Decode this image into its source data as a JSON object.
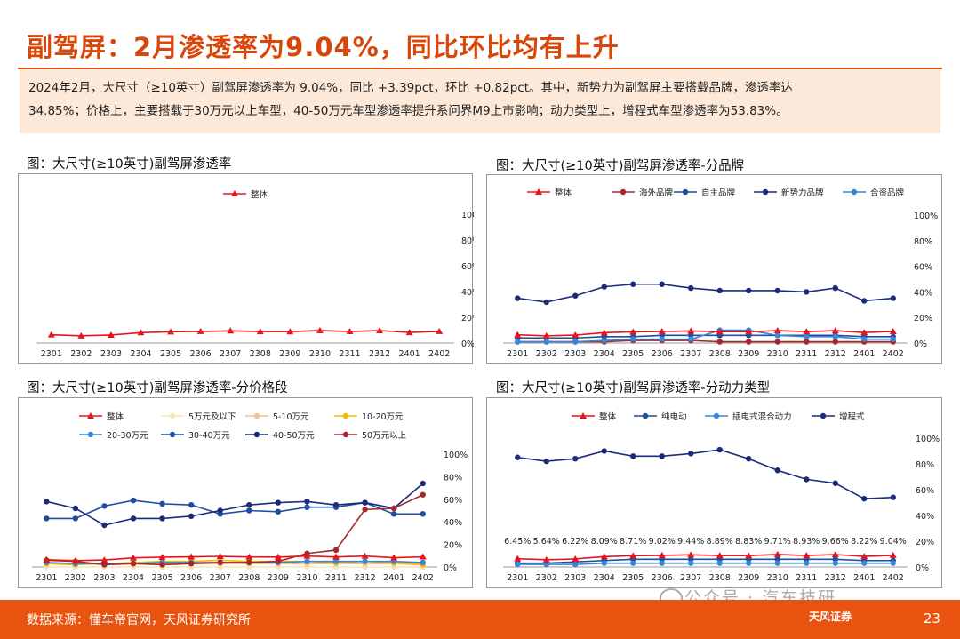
{
  "title": "副驾屏：2月渗透率为9.04%，同比环比均有上升",
  "summary_line1": "2024年2月，大尺寸（≥10英寸）副驾屏渗透率为 9.04%，同比 +3.39pct，环比 +0.82pct。其中，新势力为副驾屏主要搭载品牌，渗透率达",
  "summary_line2": "34.85%；价格上，主要搭载于30万元以上车型，40-50万元车型渗透率提升系问界M9上市影响；动力类型上，增程式车型渗透率为53.83%。",
  "footer": {
    "source": "数据来源：懂车帝官网，天风证券研究所",
    "logo": "天风证券",
    "page": "23"
  },
  "watermark": "公众号 · 汽车技研",
  "chart_data": [
    {
      "panel_title": "图：大尺寸(≥10英寸)副驾屏渗透率",
      "type": "line",
      "categories": [
        "2301",
        "2302",
        "2303",
        "2304",
        "2305",
        "2306",
        "2307",
        "2308",
        "2309",
        "2310",
        "2311",
        "2312",
        "2401",
        "2402"
      ],
      "ylim": [
        0,
        100
      ],
      "yticks": [
        "0%",
        "20%",
        "40%",
        "60%",
        "80%",
        "100%"
      ],
      "legend_position": "top",
      "series": [
        {
          "name": "整体",
          "color": "#e8141c",
          "marker": "triangle",
          "values": [
            6.45,
            5.64,
            6.22,
            8.09,
            8.71,
            9.02,
            9.44,
            8.89,
            8.83,
            9.71,
            8.93,
            9.66,
            8.22,
            9.04
          ]
        }
      ]
    },
    {
      "panel_title": "图：大尺寸(≥10英寸)副驾屏渗透率-分品牌",
      "type": "line",
      "categories": [
        "2301",
        "2302",
        "2303",
        "2304",
        "2305",
        "2306",
        "2307",
        "2308",
        "2309",
        "2310",
        "2311",
        "2312",
        "2401",
        "2402"
      ],
      "ylim": [
        0,
        100
      ],
      "yticks": [
        "0%",
        "20%",
        "40%",
        "60%",
        "80%",
        "100%"
      ],
      "legend_position": "top",
      "series": [
        {
          "name": "整体",
          "color": "#e8141c",
          "marker": "triangle",
          "values": [
            6.45,
            5.64,
            6.22,
            8.09,
            8.71,
            9.02,
            9.44,
            8.89,
            8.83,
            9.71,
            8.93,
            9.66,
            8.22,
            9.04
          ]
        },
        {
          "name": "海外品牌",
          "color": "#a5282d",
          "marker": "dot",
          "values": [
            1,
            1,
            1,
            1,
            2,
            2,
            2,
            1,
            1,
            1,
            1,
            1,
            1,
            1
          ]
        },
        {
          "name": "自主品牌",
          "color": "#1f4e9e",
          "marker": "dot",
          "values": [
            4,
            4,
            4,
            5,
            5,
            6,
            6,
            6,
            6,
            6,
            6,
            6,
            5,
            5
          ]
        },
        {
          "name": "新势力品牌",
          "color": "#1c2a7a",
          "marker": "dot",
          "values": [
            35,
            32,
            37,
            44,
            46,
            46,
            43,
            41,
            41,
            41,
            40,
            43,
            33,
            35
          ]
        },
        {
          "name": "合资品牌",
          "color": "#3a86d6",
          "marker": "dot",
          "values": [
            1,
            1,
            1,
            2,
            3,
            3,
            3,
            10,
            10,
            6,
            5,
            5,
            3,
            3
          ]
        }
      ]
    },
    {
      "panel_title": "图：大尺寸(≥10英寸)副驾屏渗透率-分价格段",
      "type": "line",
      "categories": [
        "2301",
        "2302",
        "2303",
        "2304",
        "2305",
        "2306",
        "2307",
        "2308",
        "2309",
        "2310",
        "2311",
        "2312",
        "2401",
        "2402"
      ],
      "ylim": [
        0,
        100
      ],
      "yticks": [
        "0%",
        "20%",
        "40%",
        "60%",
        "80%",
        "100%"
      ],
      "legend_position": "top",
      "series": [
        {
          "name": "整体",
          "color": "#e8141c",
          "marker": "triangle",
          "values": [
            6.45,
            5.64,
            6.22,
            8.09,
            8.71,
            9.02,
            9.44,
            8.89,
            8.83,
            9.71,
            8.93,
            9.66,
            8.22,
            9.04
          ]
        },
        {
          "name": "5万元及以下",
          "color": "#f5e7b0",
          "marker": "dot",
          "values": [
            0,
            0,
            0,
            0,
            0,
            0,
            0,
            0,
            0,
            0,
            0,
            0,
            0,
            0
          ]
        },
        {
          "name": "5-10万元",
          "color": "#f0c48a",
          "marker": "dot",
          "values": [
            3,
            3,
            3,
            3,
            3,
            3,
            3,
            3,
            3,
            3,
            3,
            3,
            3,
            2
          ]
        },
        {
          "name": "10-20万元",
          "color": "#f7b500",
          "marker": "dot",
          "values": [
            3,
            2,
            3,
            4,
            5,
            5,
            6,
            5,
            5,
            5,
            4,
            5,
            4,
            2
          ]
        },
        {
          "name": "20-30万元",
          "color": "#3a86d6",
          "marker": "dot",
          "values": [
            4,
            3,
            3,
            3,
            4,
            4,
            4,
            4,
            4,
            5,
            5,
            5,
            5,
            4
          ]
        },
        {
          "name": "30-40万元",
          "color": "#1f4e9e",
          "marker": "dot",
          "values": [
            43,
            43,
            54,
            59,
            56,
            55,
            47,
            50,
            49,
            53,
            53,
            57,
            47,
            47
          ]
        },
        {
          "name": "40-50万元",
          "color": "#1c2a7a",
          "marker": "dot",
          "values": [
            58,
            52,
            37,
            43,
            43,
            45,
            50,
            55,
            57,
            58,
            55,
            57,
            52,
            74
          ]
        },
        {
          "name": "50万元以上",
          "color": "#a5282d",
          "marker": "dot",
          "values": [
            6,
            5,
            2,
            3,
            2,
            3,
            4,
            4,
            5,
            12,
            15,
            51,
            52,
            64
          ]
        }
      ]
    },
    {
      "panel_title": "图：大尺寸(≥10英寸)副驾屏渗透率-分动力类型",
      "type": "line",
      "categories": [
        "2301",
        "2302",
        "2303",
        "2304",
        "2305",
        "2306",
        "2307",
        "2308",
        "2309",
        "2310",
        "2311",
        "2312",
        "2401",
        "2402"
      ],
      "ylim": [
        0,
        100
      ],
      "yticks": [
        "0%",
        "20%",
        "40%",
        "60%",
        "80%",
        "100%"
      ],
      "legend_position": "top",
      "data_labels": [
        "6.45%",
        "5.64%",
        "6.22%",
        "8.09%",
        "8.71%",
        "9.02%",
        "9.44%",
        "8.89%",
        "8.83%",
        "9.71%",
        "8.93%",
        "9.66%",
        "8.22%",
        "9.04%"
      ],
      "series": [
        {
          "name": "整体",
          "color": "#e8141c",
          "marker": "triangle",
          "values": [
            6.45,
            5.64,
            6.22,
            8.09,
            8.71,
            9.02,
            9.44,
            8.89,
            8.83,
            9.71,
            8.93,
            9.66,
            8.22,
            9.04
          ]
        },
        {
          "name": "纯电动",
          "color": "#1f4e9e",
          "marker": "dot",
          "values": [
            3,
            3,
            4,
            5,
            6,
            6,
            6,
            6,
            6,
            6,
            6,
            6,
            5,
            5
          ]
        },
        {
          "name": "插电式混合动力",
          "color": "#3a86d6",
          "marker": "dot",
          "values": [
            2,
            2,
            2,
            3,
            3,
            3,
            3,
            3,
            3,
            3,
            3,
            3,
            3,
            3
          ]
        },
        {
          "name": "增程式",
          "color": "#1c2a7a",
          "marker": "dot",
          "values": [
            85,
            82,
            84,
            90,
            86,
            86,
            88,
            91,
            84,
            75,
            68,
            65,
            53,
            54
          ]
        }
      ]
    }
  ]
}
